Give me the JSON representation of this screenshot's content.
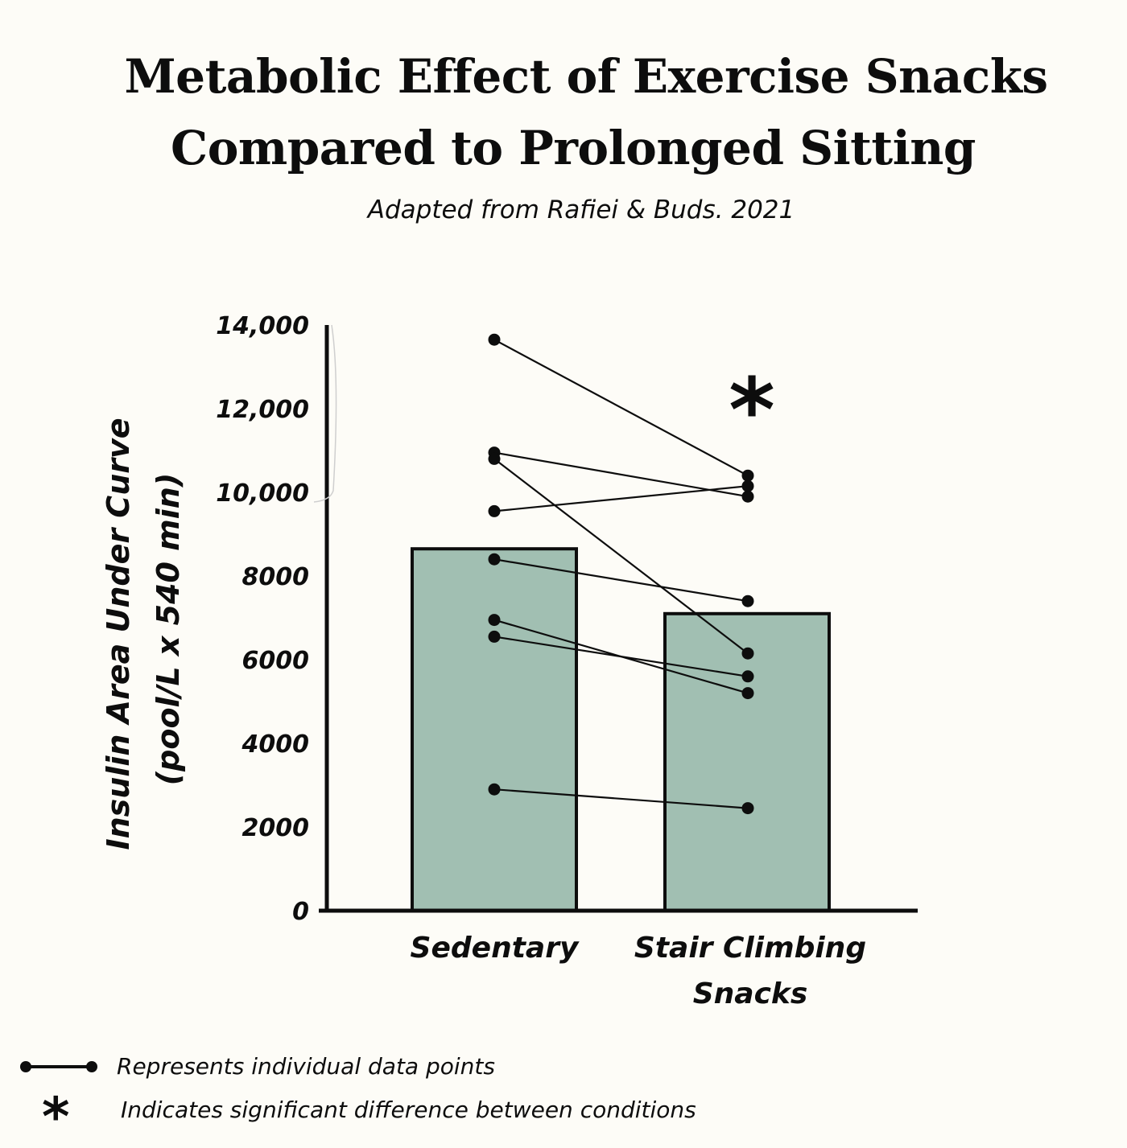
{
  "title_line1": "Metabolic Effect of Exercise Snacks",
  "title_line2": "Compared to Prolonged Sitting",
  "subtitle": "Adapted from Rafiei & Buds. 2021",
  "chart_data": {
    "type": "bar",
    "categories": [
      "Sedentary",
      "Stair Climbing\nSnacks"
    ],
    "category_lines": [
      [
        "Sedentary"
      ],
      [
        "Stair Climbing",
        "Snacks"
      ]
    ],
    "values": [
      8650,
      7100
    ],
    "ylabel_line1": "Insulin Area Under Curve",
    "ylabel_line2": "(pool/L x 540 min)",
    "ylim": [
      0,
      14000
    ],
    "yticks": [
      0,
      2000,
      4000,
      6000,
      8000,
      10000,
      12000,
      14000
    ],
    "ytick_labels": [
      "0",
      "2000",
      "4000",
      "6000",
      "8000",
      "10,000",
      "12,000",
      "14,000"
    ],
    "individual_pairs": [
      [
        13650,
        10400
      ],
      [
        10950,
        9900
      ],
      [
        10800,
        6150
      ],
      [
        9550,
        10150
      ],
      [
        8400,
        7400
      ],
      [
        6950,
        5200
      ],
      [
        6550,
        5600
      ],
      [
        2900,
        2450
      ]
    ],
    "significance_marker": "*",
    "significance_category": "Stair Climbing\nSnacks",
    "bar_color": "#a1bfb2",
    "grid": false
  },
  "legend": {
    "line_text": "Represents individual data points",
    "star_symbol": "*",
    "star_text": "Indicates significant difference between conditions"
  }
}
